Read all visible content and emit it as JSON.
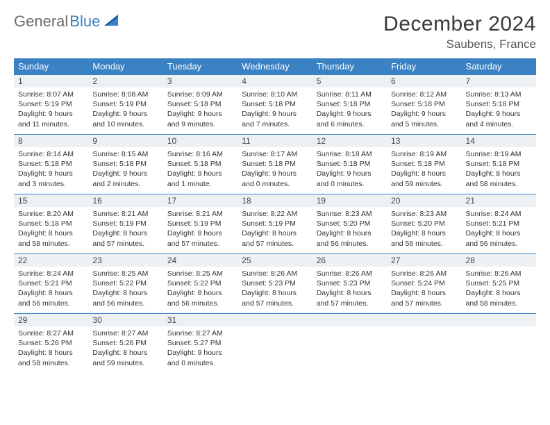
{
  "brand": {
    "word1": "General",
    "word2": "Blue"
  },
  "title": "December 2024",
  "location": "Saubens, France",
  "colors": {
    "header_bg": "#3a82c4",
    "header_text": "#ffffff",
    "daynum_bg": "#eef1f3",
    "border": "#3a82c4",
    "logo_gray": "#6b6b6b",
    "logo_blue": "#3a7fc4"
  },
  "weekdays": [
    "Sunday",
    "Monday",
    "Tuesday",
    "Wednesday",
    "Thursday",
    "Friday",
    "Saturday"
  ],
  "weeks": [
    [
      {
        "n": "1",
        "sr": "Sunrise: 8:07 AM",
        "ss": "Sunset: 5:19 PM",
        "d1": "Daylight: 9 hours",
        "d2": "and 11 minutes."
      },
      {
        "n": "2",
        "sr": "Sunrise: 8:08 AM",
        "ss": "Sunset: 5:19 PM",
        "d1": "Daylight: 9 hours",
        "d2": "and 10 minutes."
      },
      {
        "n": "3",
        "sr": "Sunrise: 8:09 AM",
        "ss": "Sunset: 5:18 PM",
        "d1": "Daylight: 9 hours",
        "d2": "and 9 minutes."
      },
      {
        "n": "4",
        "sr": "Sunrise: 8:10 AM",
        "ss": "Sunset: 5:18 PM",
        "d1": "Daylight: 9 hours",
        "d2": "and 7 minutes."
      },
      {
        "n": "5",
        "sr": "Sunrise: 8:11 AM",
        "ss": "Sunset: 5:18 PM",
        "d1": "Daylight: 9 hours",
        "d2": "and 6 minutes."
      },
      {
        "n": "6",
        "sr": "Sunrise: 8:12 AM",
        "ss": "Sunset: 5:18 PM",
        "d1": "Daylight: 9 hours",
        "d2": "and 5 minutes."
      },
      {
        "n": "7",
        "sr": "Sunrise: 8:13 AM",
        "ss": "Sunset: 5:18 PM",
        "d1": "Daylight: 9 hours",
        "d2": "and 4 minutes."
      }
    ],
    [
      {
        "n": "8",
        "sr": "Sunrise: 8:14 AM",
        "ss": "Sunset: 5:18 PM",
        "d1": "Daylight: 9 hours",
        "d2": "and 3 minutes."
      },
      {
        "n": "9",
        "sr": "Sunrise: 8:15 AM",
        "ss": "Sunset: 5:18 PM",
        "d1": "Daylight: 9 hours",
        "d2": "and 2 minutes."
      },
      {
        "n": "10",
        "sr": "Sunrise: 8:16 AM",
        "ss": "Sunset: 5:18 PM",
        "d1": "Daylight: 9 hours",
        "d2": "and 1 minute."
      },
      {
        "n": "11",
        "sr": "Sunrise: 8:17 AM",
        "ss": "Sunset: 5:18 PM",
        "d1": "Daylight: 9 hours",
        "d2": "and 0 minutes."
      },
      {
        "n": "12",
        "sr": "Sunrise: 8:18 AM",
        "ss": "Sunset: 5:18 PM",
        "d1": "Daylight: 9 hours",
        "d2": "and 0 minutes."
      },
      {
        "n": "13",
        "sr": "Sunrise: 8:19 AM",
        "ss": "Sunset: 5:18 PM",
        "d1": "Daylight: 8 hours",
        "d2": "and 59 minutes."
      },
      {
        "n": "14",
        "sr": "Sunrise: 8:19 AM",
        "ss": "Sunset: 5:18 PM",
        "d1": "Daylight: 8 hours",
        "d2": "and 58 minutes."
      }
    ],
    [
      {
        "n": "15",
        "sr": "Sunrise: 8:20 AM",
        "ss": "Sunset: 5:18 PM",
        "d1": "Daylight: 8 hours",
        "d2": "and 58 minutes."
      },
      {
        "n": "16",
        "sr": "Sunrise: 8:21 AM",
        "ss": "Sunset: 5:19 PM",
        "d1": "Daylight: 8 hours",
        "d2": "and 57 minutes."
      },
      {
        "n": "17",
        "sr": "Sunrise: 8:21 AM",
        "ss": "Sunset: 5:19 PM",
        "d1": "Daylight: 8 hours",
        "d2": "and 57 minutes."
      },
      {
        "n": "18",
        "sr": "Sunrise: 8:22 AM",
        "ss": "Sunset: 5:19 PM",
        "d1": "Daylight: 8 hours",
        "d2": "and 57 minutes."
      },
      {
        "n": "19",
        "sr": "Sunrise: 8:23 AM",
        "ss": "Sunset: 5:20 PM",
        "d1": "Daylight: 8 hours",
        "d2": "and 56 minutes."
      },
      {
        "n": "20",
        "sr": "Sunrise: 8:23 AM",
        "ss": "Sunset: 5:20 PM",
        "d1": "Daylight: 8 hours",
        "d2": "and 56 minutes."
      },
      {
        "n": "21",
        "sr": "Sunrise: 8:24 AM",
        "ss": "Sunset: 5:21 PM",
        "d1": "Daylight: 8 hours",
        "d2": "and 56 minutes."
      }
    ],
    [
      {
        "n": "22",
        "sr": "Sunrise: 8:24 AM",
        "ss": "Sunset: 5:21 PM",
        "d1": "Daylight: 8 hours",
        "d2": "and 56 minutes."
      },
      {
        "n": "23",
        "sr": "Sunrise: 8:25 AM",
        "ss": "Sunset: 5:22 PM",
        "d1": "Daylight: 8 hours",
        "d2": "and 56 minutes."
      },
      {
        "n": "24",
        "sr": "Sunrise: 8:25 AM",
        "ss": "Sunset: 5:22 PM",
        "d1": "Daylight: 8 hours",
        "d2": "and 56 minutes."
      },
      {
        "n": "25",
        "sr": "Sunrise: 8:26 AM",
        "ss": "Sunset: 5:23 PM",
        "d1": "Daylight: 8 hours",
        "d2": "and 57 minutes."
      },
      {
        "n": "26",
        "sr": "Sunrise: 8:26 AM",
        "ss": "Sunset: 5:23 PM",
        "d1": "Daylight: 8 hours",
        "d2": "and 57 minutes."
      },
      {
        "n": "27",
        "sr": "Sunrise: 8:26 AM",
        "ss": "Sunset: 5:24 PM",
        "d1": "Daylight: 8 hours",
        "d2": "and 57 minutes."
      },
      {
        "n": "28",
        "sr": "Sunrise: 8:26 AM",
        "ss": "Sunset: 5:25 PM",
        "d1": "Daylight: 8 hours",
        "d2": "and 58 minutes."
      }
    ],
    [
      {
        "n": "29",
        "sr": "Sunrise: 8:27 AM",
        "ss": "Sunset: 5:26 PM",
        "d1": "Daylight: 8 hours",
        "d2": "and 58 minutes."
      },
      {
        "n": "30",
        "sr": "Sunrise: 8:27 AM",
        "ss": "Sunset: 5:26 PM",
        "d1": "Daylight: 8 hours",
        "d2": "and 59 minutes."
      },
      {
        "n": "31",
        "sr": "Sunrise: 8:27 AM",
        "ss": "Sunset: 5:27 PM",
        "d1": "Daylight: 9 hours",
        "d2": "and 0 minutes."
      },
      {
        "empty": true
      },
      {
        "empty": true
      },
      {
        "empty": true
      },
      {
        "empty": true
      }
    ]
  ]
}
